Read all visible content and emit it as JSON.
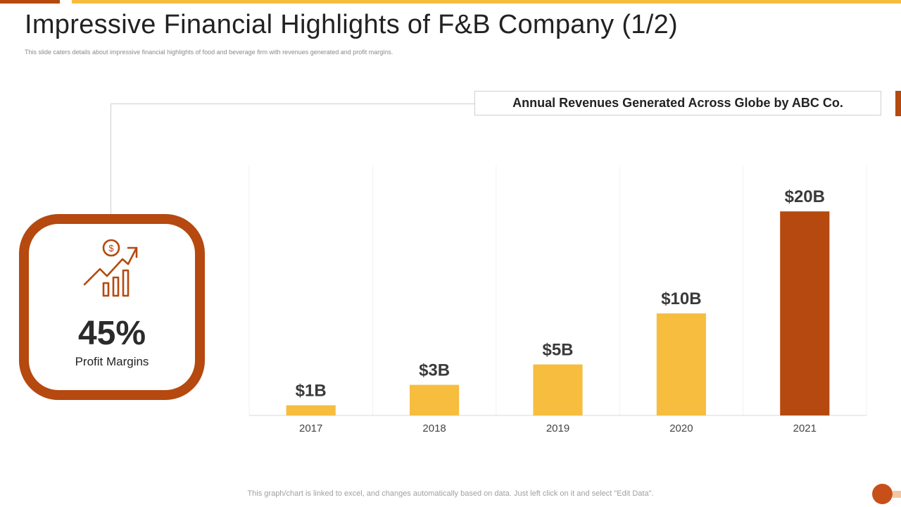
{
  "header": {
    "title": "Impressive Financial Highlights of F&B Company (1/2)",
    "subtitle": "This slide caters details about impressive financial highlights of food and beverage firm with revenues generated and profit margins."
  },
  "profit": {
    "value": "45%",
    "label": "Profit Margins",
    "icon": "growth-chart-dollar-icon"
  },
  "chart_title": "Annual Revenues Generated Across Globe by ABC Co.",
  "footer": {
    "note": "This graph/chart is linked to excel,  and changes automatically based on data. Just left click on it and select \"Edit Data\"."
  },
  "colors": {
    "accent_dark": "#b5490f",
    "accent_light": "#f7bd3f",
    "highlight_bar": "#b5490f"
  },
  "chart_data": {
    "type": "bar",
    "categories": [
      "2017",
      "2018",
      "2019",
      "2020",
      "2021"
    ],
    "values": [
      1,
      3,
      5,
      10,
      20
    ],
    "data_labels": [
      "$1B",
      "$3B",
      "$5B",
      "$10B",
      "$20B"
    ],
    "highlight_index": 4,
    "unit": "$B",
    "ylim": [
      0,
      24.5
    ],
    "grid": "vertical-light",
    "title": "Annual Revenues Generated Across Globe by ABC Co."
  }
}
